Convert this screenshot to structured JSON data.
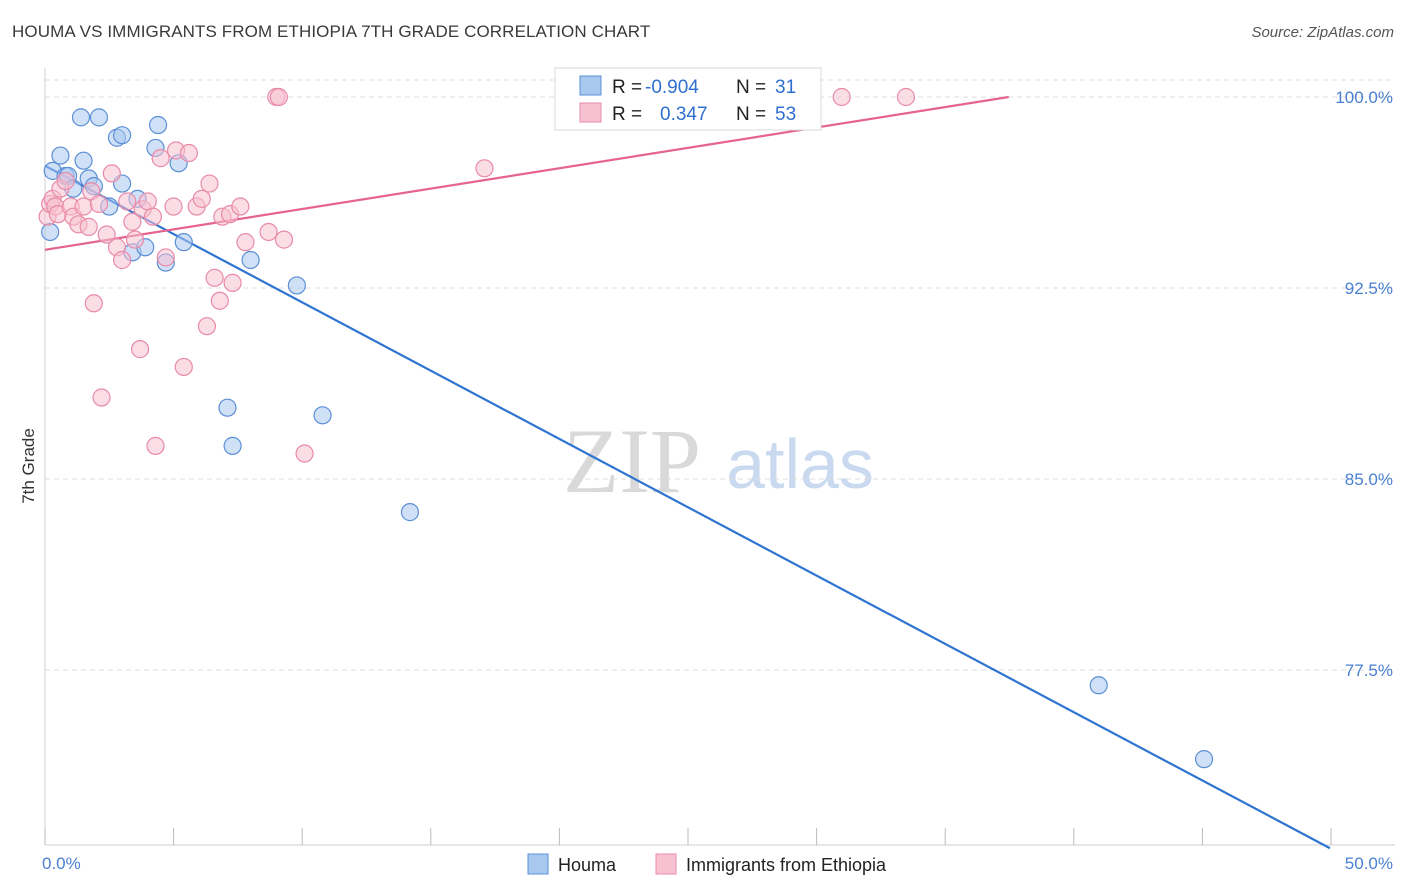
{
  "title": "HOUMA VS IMMIGRANTS FROM ETHIOPIA 7TH GRADE CORRELATION CHART",
  "source": "Source: ZipAtlas.com",
  "watermark": {
    "zip": "ZIP",
    "atlas": "atlas"
  },
  "colors": {
    "blue_fill": "#a9c8f0",
    "blue_stroke": "#5b8fd6",
    "blue_line": "#2f74d0",
    "pink_fill": "#f7c1d1",
    "pink_stroke": "#e88aa8",
    "pink_line": "#e5648d",
    "grid": "#dddddd",
    "tick_label": "#4a7fd1"
  },
  "legend": {
    "rows": [
      {
        "r_label": "R =",
        "r_value": "-0.904",
        "n_label": "N =",
        "n_value": "31",
        "series": "houma"
      },
      {
        "r_label": "R =",
        "r_value": "0.347",
        "n_label": "N =",
        "n_value": "53",
        "series": "ethiopia"
      }
    ]
  },
  "bottom_legend": [
    "Houma",
    "Immigrants from Ethiopia"
  ],
  "chart_data": {
    "type": "scatter",
    "ylabel": "7th Grade",
    "xlabel": "",
    "xlim": [
      0,
      50
    ],
    "ylim": [
      70.5,
      100.9
    ],
    "x_tick_labels": [
      {
        "value": 0,
        "label": "0.0%"
      },
      {
        "value": 50,
        "label": "50.0%"
      }
    ],
    "y_tick_labels": [
      {
        "value": 100,
        "label": "100.0%"
      },
      {
        "value": 92.5,
        "label": "92.5%"
      },
      {
        "value": 85,
        "label": "85.0%"
      },
      {
        "value": 77.5,
        "label": "77.5%"
      }
    ],
    "x_minor_ticks": [
      0,
      5,
      10,
      15,
      20,
      25,
      30,
      35,
      40,
      45,
      50
    ],
    "series": [
      {
        "name": "Houma",
        "color": "blue",
        "points": [
          [
            0.2,
            94.7
          ],
          [
            0.3,
            97.1
          ],
          [
            0.6,
            97.7
          ],
          [
            0.8,
            96.9
          ],
          [
            0.9,
            96.9
          ],
          [
            1.1,
            96.4
          ],
          [
            1.4,
            99.2
          ],
          [
            1.5,
            97.5
          ],
          [
            1.7,
            96.8
          ],
          [
            1.9,
            96.5
          ],
          [
            2.1,
            99.2
          ],
          [
            2.5,
            95.7
          ],
          [
            2.8,
            98.4
          ],
          [
            3.0,
            98.5
          ],
          [
            3.0,
            96.6
          ],
          [
            3.4,
            93.9
          ],
          [
            3.6,
            96.0
          ],
          [
            3.9,
            94.1
          ],
          [
            4.3,
            98.0
          ],
          [
            4.4,
            98.9
          ],
          [
            4.7,
            93.5
          ],
          [
            5.2,
            97.4
          ],
          [
            5.4,
            94.3
          ],
          [
            7.1,
            87.8
          ],
          [
            7.3,
            86.3
          ],
          [
            8.0,
            93.6
          ],
          [
            9.8,
            92.6
          ],
          [
            10.8,
            87.5
          ],
          [
            14.2,
            83.7
          ],
          [
            41.0,
            76.9
          ],
          [
            45.1,
            74.0
          ]
        ],
        "trend": {
          "x0": 0,
          "y0": 97.3,
          "x1": 50,
          "y1": 70.5
        }
      },
      {
        "name": "Immigrants from Ethiopia",
        "color": "pink",
        "points": [
          [
            0.1,
            95.3
          ],
          [
            0.2,
            95.8
          ],
          [
            0.3,
            96.0
          ],
          [
            0.4,
            95.7
          ],
          [
            0.5,
            95.4
          ],
          [
            0.6,
            96.4
          ],
          [
            0.8,
            96.7
          ],
          [
            1.0,
            95.7
          ],
          [
            1.1,
            95.3
          ],
          [
            1.3,
            95.0
          ],
          [
            1.5,
            95.7
          ],
          [
            1.7,
            94.9
          ],
          [
            1.8,
            96.3
          ],
          [
            1.9,
            91.9
          ],
          [
            2.1,
            95.8
          ],
          [
            2.2,
            88.2
          ],
          [
            2.4,
            94.6
          ],
          [
            2.6,
            97.0
          ],
          [
            2.8,
            94.1
          ],
          [
            3.0,
            93.6
          ],
          [
            3.2,
            95.9
          ],
          [
            3.4,
            95.1
          ],
          [
            3.5,
            94.4
          ],
          [
            3.7,
            90.1
          ],
          [
            3.8,
            95.6
          ],
          [
            4.0,
            95.9
          ],
          [
            4.2,
            95.3
          ],
          [
            4.3,
            86.3
          ],
          [
            4.5,
            97.6
          ],
          [
            4.7,
            93.7
          ],
          [
            5.0,
            95.7
          ],
          [
            5.1,
            97.9
          ],
          [
            5.4,
            89.4
          ],
          [
            5.6,
            97.8
          ],
          [
            5.9,
            95.7
          ],
          [
            6.1,
            96.0
          ],
          [
            6.3,
            91.0
          ],
          [
            6.4,
            96.6
          ],
          [
            6.6,
            92.9
          ],
          [
            6.8,
            92.0
          ],
          [
            6.9,
            95.3
          ],
          [
            7.2,
            95.4
          ],
          [
            7.3,
            92.7
          ],
          [
            7.6,
            95.7
          ],
          [
            7.8,
            94.3
          ],
          [
            8.7,
            94.7
          ],
          [
            9.0,
            100.0
          ],
          [
            9.1,
            100.0
          ],
          [
            9.3,
            94.4
          ],
          [
            10.1,
            86.0
          ],
          [
            17.1,
            97.2
          ],
          [
            31.0,
            100.0
          ],
          [
            33.5,
            100.0
          ]
        ],
        "trend": {
          "x0": 0,
          "y0": 94.0,
          "x1": 37.5,
          "y1": 100.0
        }
      }
    ]
  }
}
